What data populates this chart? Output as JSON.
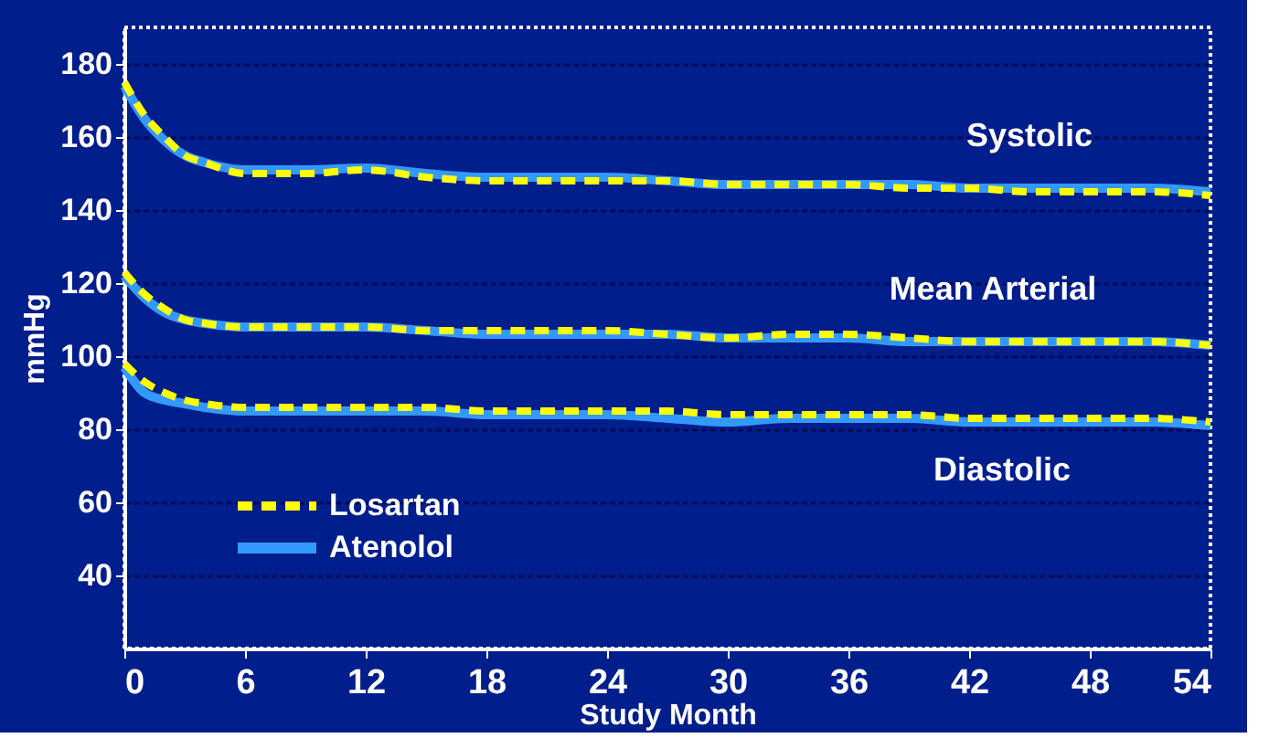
{
  "chart_data": {
    "type": "line",
    "xlabel": "Study Month",
    "ylabel": "mmHg",
    "x": [
      0,
      1,
      2,
      3,
      4,
      6,
      9,
      12,
      15,
      18,
      21,
      24,
      27,
      30,
      33,
      36,
      39,
      42,
      45,
      48,
      51,
      54
    ],
    "xlim": [
      0,
      54
    ],
    "xticks": [
      0,
      6,
      12,
      18,
      24,
      30,
      36,
      42,
      48,
      54
    ],
    "ylim": [
      20,
      190
    ],
    "yticks": [
      40,
      60,
      80,
      100,
      120,
      140,
      160,
      180
    ],
    "grid": "y",
    "legend": "bottom left",
    "marker": "none",
    "series": [
      {
        "name": "Atenolol",
        "color": "#3399ff",
        "line_style": "solid",
        "values": [
          174,
          165,
          159,
          155,
          153,
          151,
          151,
          151.5,
          150,
          149,
          149,
          149,
          148,
          147,
          147,
          147,
          147,
          146,
          146,
          146,
          146,
          145
        ]
      },
      {
        "name": "Losartan",
        "color": "#ffff00",
        "line_style": "dashed",
        "values": [
          175,
          166,
          160,
          155,
          153,
          150,
          150,
          151,
          149,
          148,
          148,
          148,
          148,
          147,
          147,
          147,
          146,
          146,
          145,
          145,
          145,
          144
        ]
      },
      {
        "color": "#3399ff",
        "line_style": "solid",
        "values": [
          122,
          116,
          112,
          110,
          109,
          108,
          108,
          108,
          107,
          106,
          106,
          106,
          106,
          105,
          105,
          105,
          104,
          104,
          104,
          104,
          104,
          103
        ]
      },
      {
        "color": "#ffff00",
        "line_style": "dashed",
        "values": [
          123,
          117,
          113,
          110,
          109,
          108,
          108,
          108,
          107,
          107,
          107,
          107,
          106,
          105,
          106,
          106,
          105,
          104,
          104,
          104,
          104,
          103
        ]
      },
      {
        "color": "#3399ff",
        "line_style": "solid",
        "values": [
          97,
          90,
          88,
          87,
          86,
          85,
          85,
          85,
          85,
          84,
          84,
          84,
          83,
          82,
          83,
          83,
          83,
          82,
          82,
          82,
          82,
          81
        ]
      },
      {
        "color": "#ffff00",
        "line_style": "dashed",
        "values": [
          98,
          93,
          90,
          88,
          87,
          86,
          86,
          86,
          86,
          85,
          85,
          85,
          85,
          84,
          84,
          84,
          84,
          83,
          83,
          83,
          83,
          82
        ]
      }
    ],
    "annotations": [
      "Systolic",
      "Mean Arterial",
      "Diastolic"
    ]
  }
}
